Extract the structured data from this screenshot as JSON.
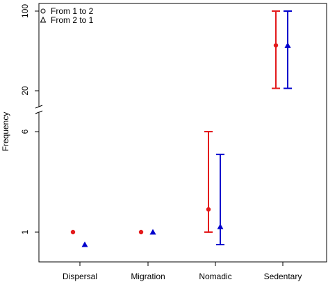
{
  "chart_data": {
    "type": "scatter",
    "title": "",
    "xlabel": "",
    "ylabel": "Frequency",
    "axis_break": true,
    "categories": [
      "Dispersal",
      "Migration",
      "Nomadic",
      "Sedentary"
    ],
    "yticks_lower": [
      "1",
      "6"
    ],
    "yticks_upper": [
      "20",
      "100"
    ],
    "legend": {
      "position": "top-left",
      "entries": [
        "From 1 to 2",
        "From 2 to 1"
      ]
    },
    "series": [
      {
        "name": "From 1 to 2",
        "marker": "circle",
        "color": "#e31a1c",
        "points": [
          {
            "category": "Dispersal",
            "y": 1
          },
          {
            "category": "Migration",
            "y": 1
          },
          {
            "category": "Nomadic",
            "y": 1.5,
            "lower": 1,
            "upper": 6
          },
          {
            "category": "Sedentary",
            "y": 50,
            "lower": 21,
            "upper": 100
          }
        ]
      },
      {
        "name": "From 2 to 1",
        "marker": "triangle",
        "color": "#0000cc",
        "points": [
          {
            "category": "Dispersal",
            "y": 0.8
          },
          {
            "category": "Migration",
            "y": 1
          },
          {
            "category": "Nomadic",
            "y": 1.1,
            "lower": 0.8,
            "upper": 4
          },
          {
            "category": "Sedentary",
            "y": 50,
            "lower": 21,
            "upper": 100
          }
        ]
      }
    ]
  }
}
